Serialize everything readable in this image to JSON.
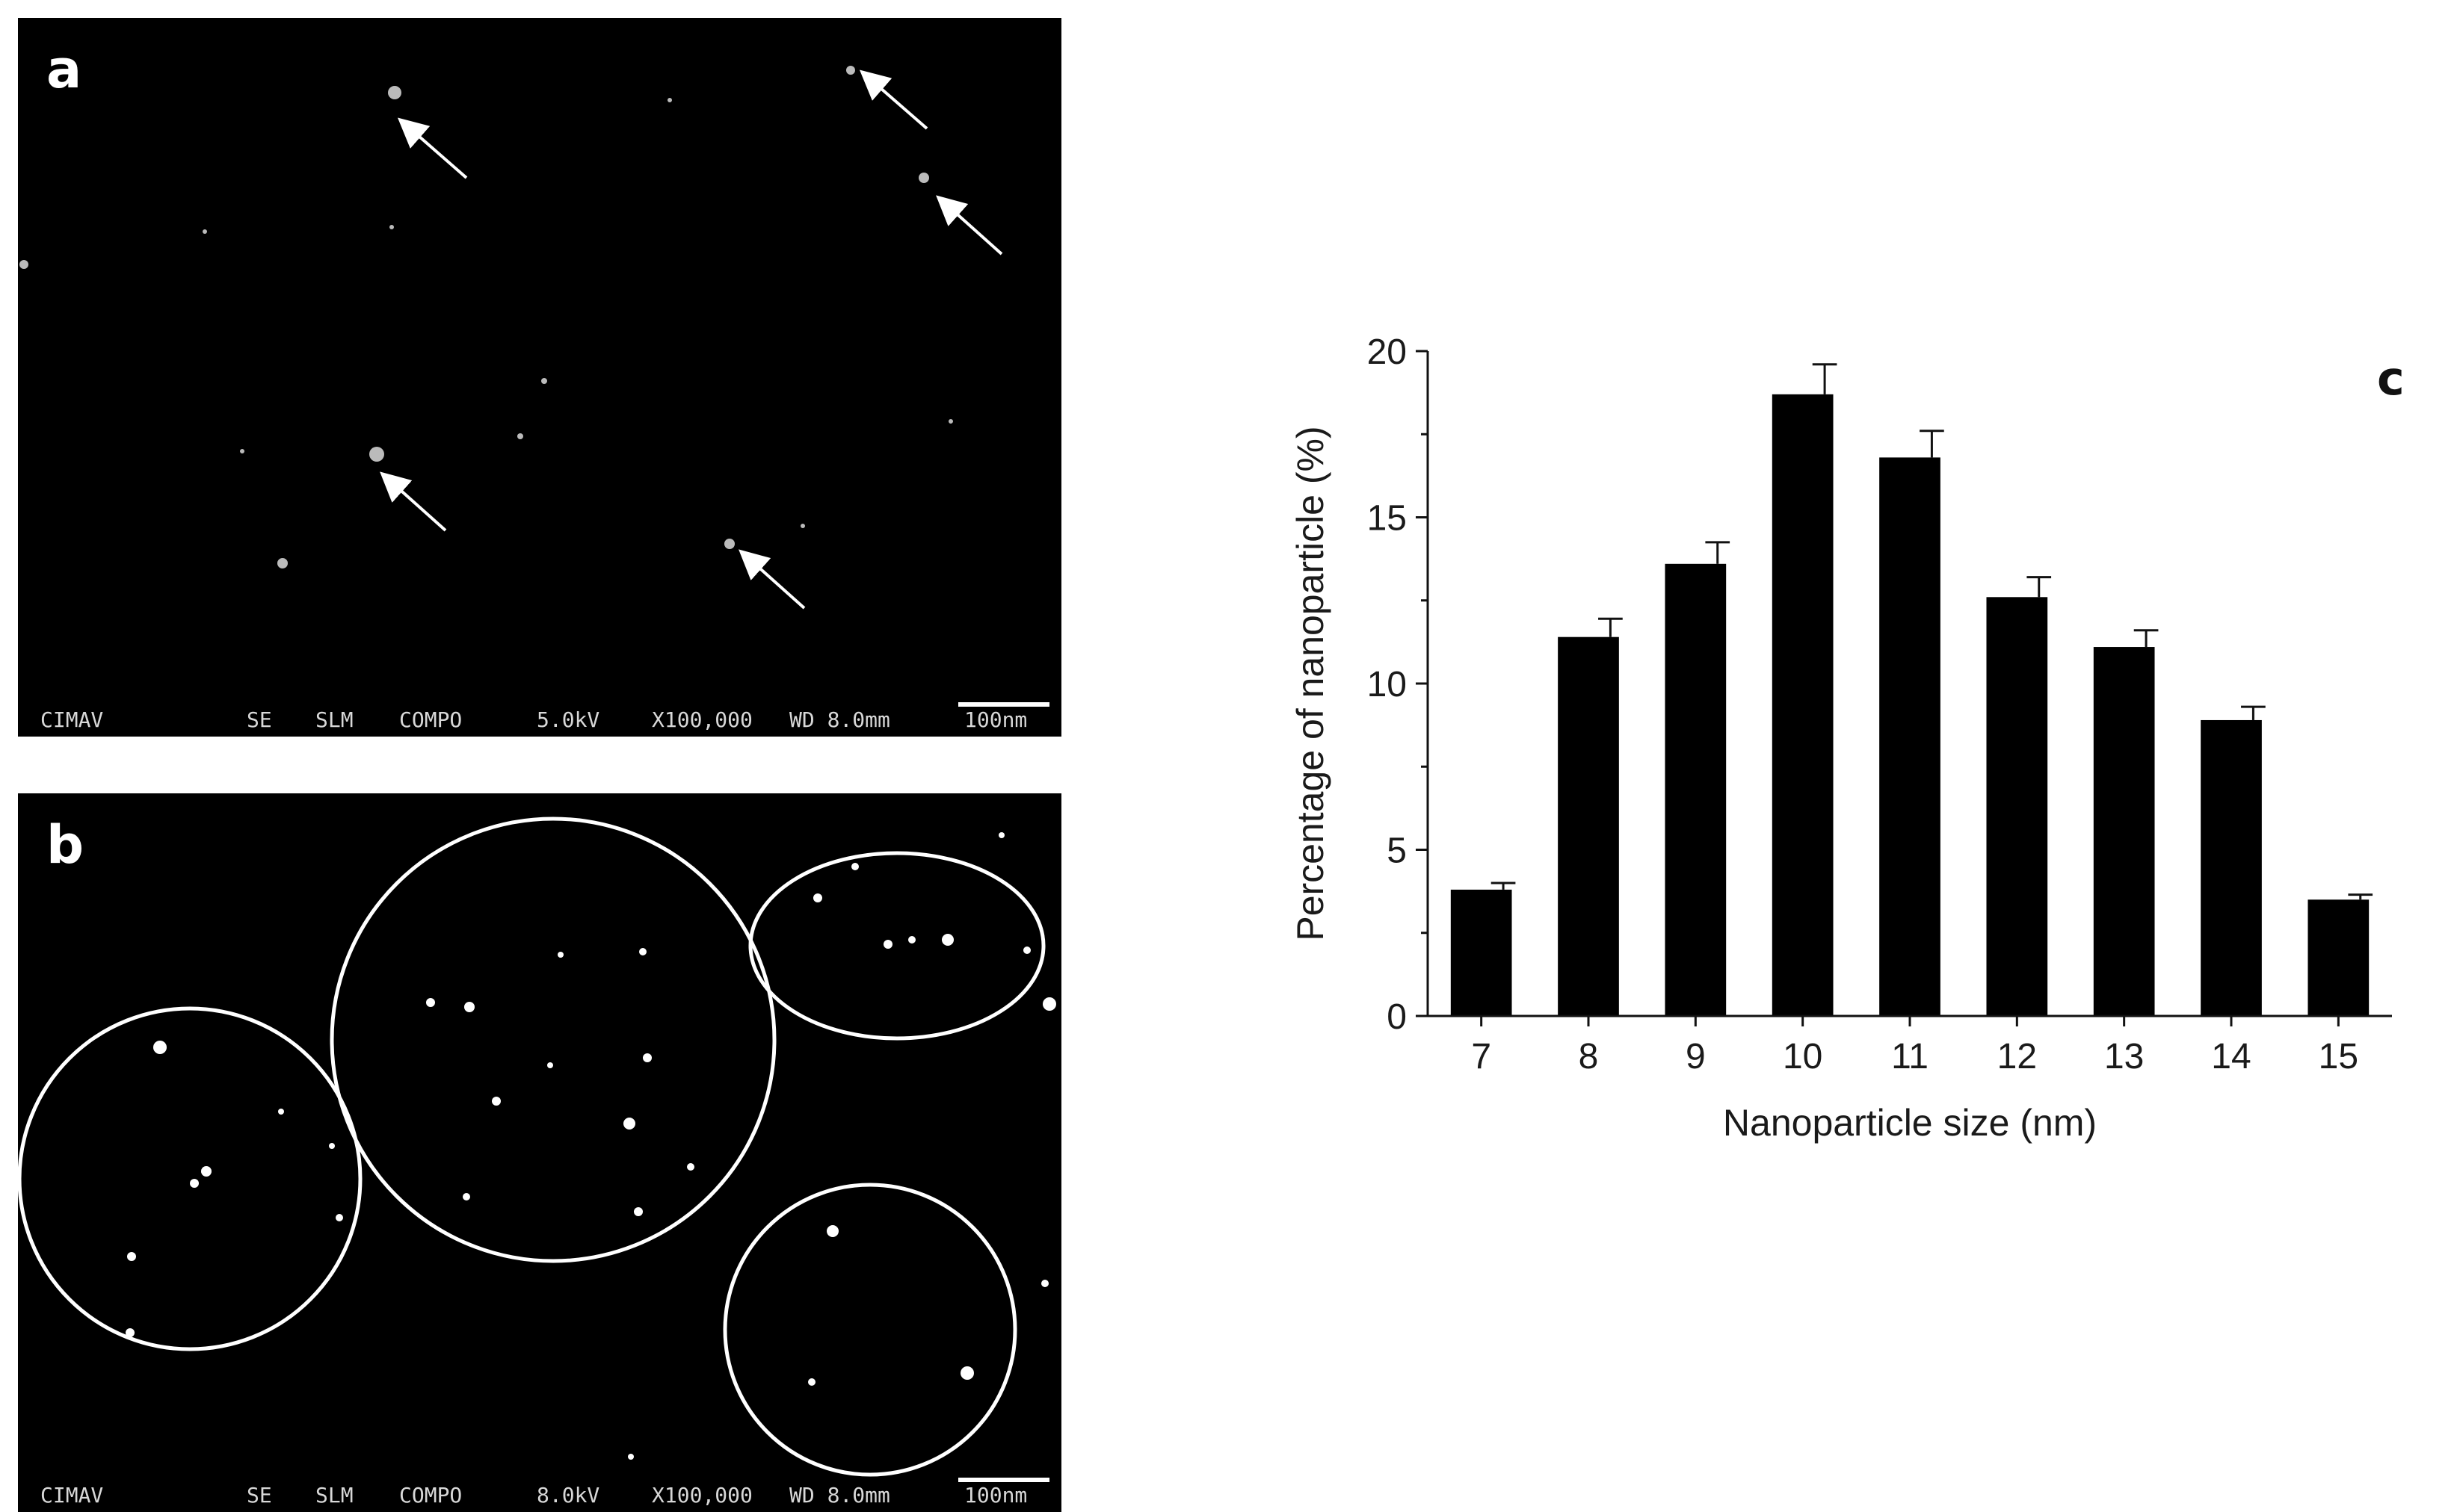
{
  "panels": {
    "a": {
      "letter": "a",
      "info": {
        "lab": "CIMAV",
        "mode1": "SE",
        "mode2": "SLM",
        "mode3": "COMPO",
        "voltage": "5.0kV",
        "magnification": "X100,000",
        "wd": "WD 8.0mm",
        "scale": "100nm"
      }
    },
    "b": {
      "letter": "b",
      "info": {
        "lab": "CIMAV",
        "mode1": "SE",
        "mode2": "SLM",
        "mode3": "COMPO",
        "voltage": "8.0kV",
        "magnification": "X100,000",
        "wd": "WD 8.0mm",
        "scale": "100nm"
      }
    },
    "c": {
      "letter": "c"
    }
  },
  "chart_data": {
    "type": "bar",
    "title": "",
    "xlabel": "Nanoparticle size (nm)",
    "ylabel": "Percentage of nanoparticle (%)",
    "categories": [
      "7",
      "8",
      "9",
      "10",
      "11",
      "12",
      "13",
      "14",
      "15"
    ],
    "values": [
      3.8,
      11.4,
      13.6,
      18.7,
      16.8,
      12.6,
      11.1,
      8.9,
      3.5
    ],
    "errors": [
      0.2,
      0.55,
      0.65,
      0.9,
      0.8,
      0.6,
      0.5,
      0.4,
      0.15
    ],
    "ylim": [
      0,
      20
    ],
    "yticks": [
      "0",
      "5",
      "10",
      "15",
      "20"
    ],
    "grid": false,
    "bar_color": "#000000"
  }
}
